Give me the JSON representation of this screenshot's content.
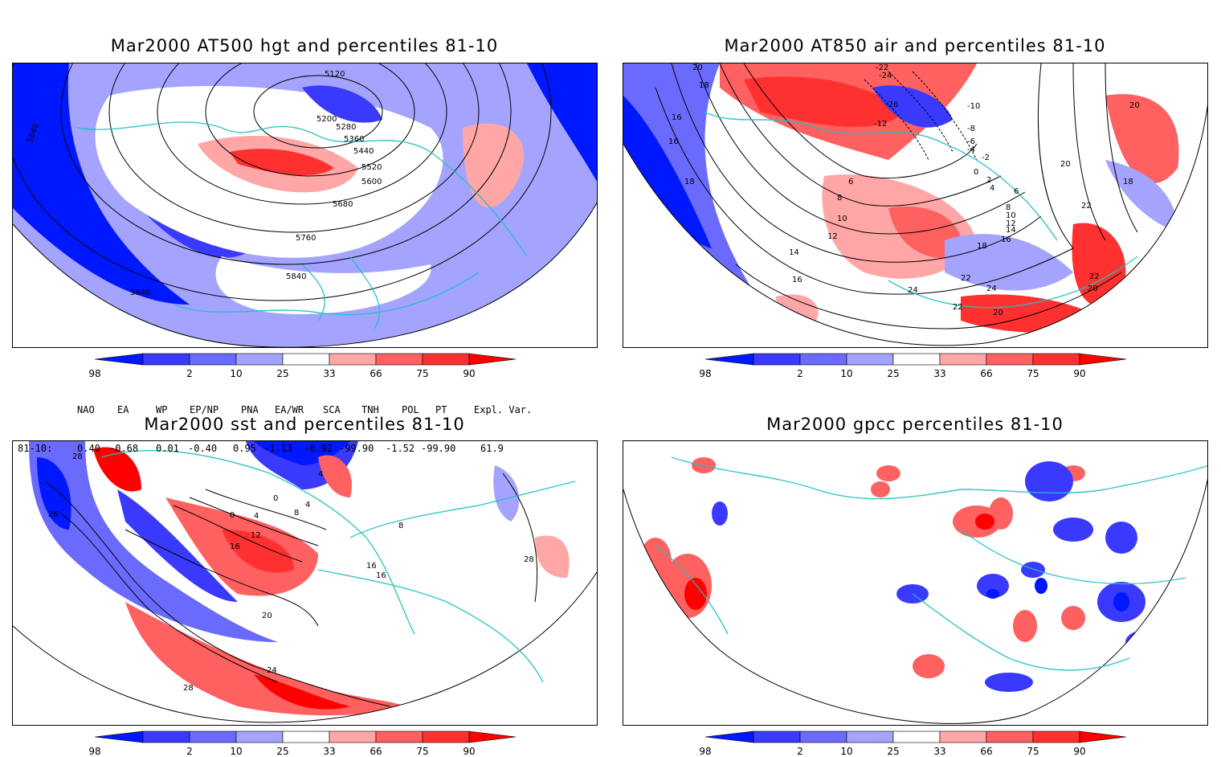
{
  "panels": [
    {
      "id": "hgt",
      "title": "Mar2000 AT500 hgt and percentiles 81-10",
      "contour_labels": [
        "5120",
        "5200",
        "5280",
        "5360",
        "5440",
        "5520",
        "5600",
        "5680",
        "5760",
        "5840",
        "5840",
        "5840"
      ]
    },
    {
      "id": "air",
      "title": "Mar2000 AT850 air and percentiles 81-10",
      "contour_labels": [
        "20",
        "18",
        "16",
        "16",
        "18",
        "-22",
        "-24",
        "-26",
        "-12",
        "-10",
        "-8",
        "-6",
        "-4",
        "-2",
        "0",
        "2",
        "4",
        "6",
        "8",
        "10",
        "12",
        "14",
        "16",
        "18",
        "20",
        "22",
        "22",
        "22",
        "24",
        "20",
        "20",
        "18",
        "20",
        "22",
        "24",
        "6",
        "8",
        "10",
        "12",
        "14",
        "16"
      ]
    },
    {
      "id": "sst",
      "title": "Mar2000 sst and percentiles 81-10",
      "contour_labels": [
        "28",
        "26",
        "0",
        "4",
        "8",
        "12",
        "16",
        "20",
        "24",
        "28",
        "4",
        "0",
        "4",
        "8",
        "16",
        "16",
        "28"
      ]
    },
    {
      "id": "gpcc",
      "title": "Mar2000 gpcc percentiles 81-10",
      "contour_labels": []
    }
  ],
  "colorbar": {
    "labels": [
      "2",
      "10",
      "25",
      "33",
      "66",
      "75",
      "90",
      "98"
    ],
    "colors": [
      "#0018ff",
      "#3a3aff",
      "#6a6aff",
      "#a4a4ff",
      "#ffffff",
      "#ffa6a6",
      "#ff6060",
      "#ff3030",
      "#ff0000"
    ]
  },
  "indices": {
    "headers": [
      "NAO",
      "EA",
      "WP",
      "EP/NP",
      "PNA",
      "EA/WR",
      "SCA",
      "TNH",
      "POL",
      "PT",
      "Expl. Var."
    ],
    "row_label": "81-10:",
    "values": [
      "0.40",
      "-0.68",
      "0.01",
      "-0.40",
      "0.95",
      "-1.13",
      "-0.92",
      "-99.90",
      "-1.52",
      "-99.90",
      "61.9"
    ]
  }
}
